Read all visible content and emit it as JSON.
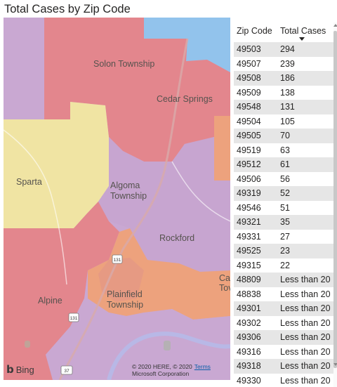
{
  "title": "Total Cases by Zip Code",
  "map": {
    "places": [
      "Solon Township",
      "Cedar Springs",
      "Sparta",
      "Algoma Township",
      "Rockford",
      "Plainfield Township",
      "Alpine",
      "Ca Tov"
    ],
    "road_shields": [
      "131",
      "131",
      "131",
      "37"
    ],
    "attribution": {
      "logo": "Bing",
      "copyright_line1": "© 2020 HERE, © 2020",
      "terms": "Terms",
      "copyright_line2": "Microsoft Corporation"
    },
    "colors": {
      "purple": "#c9a8d2",
      "red": "#e3868d",
      "yellow": "#f0e4a3",
      "orange": "#eda27d",
      "blue": "#92c3ec"
    }
  },
  "table": {
    "headers": [
      "Zip Code",
      "Total Cases"
    ],
    "sort": "descending",
    "rows": [
      [
        "49503",
        "294"
      ],
      [
        "49507",
        "239"
      ],
      [
        "49508",
        "186"
      ],
      [
        "49509",
        "138"
      ],
      [
        "49548",
        "131"
      ],
      [
        "49504",
        "105"
      ],
      [
        "49505",
        "70"
      ],
      [
        "49519",
        "63"
      ],
      [
        "49512",
        "61"
      ],
      [
        "49506",
        "56"
      ],
      [
        "49319",
        "52"
      ],
      [
        "49546",
        "51"
      ],
      [
        "49321",
        "35"
      ],
      [
        "49331",
        "27"
      ],
      [
        "49525",
        "23"
      ],
      [
        "49315",
        "22"
      ],
      [
        "48809",
        "Less than 20"
      ],
      [
        "48838",
        "Less than 20"
      ],
      [
        "49301",
        "Less than 20"
      ],
      [
        "49302",
        "Less than 20"
      ],
      [
        "49306",
        "Less than 20"
      ],
      [
        "49316",
        "Less than 20"
      ],
      [
        "49318",
        "Less than 20"
      ],
      [
        "49330",
        "Less than 20"
      ]
    ]
  }
}
